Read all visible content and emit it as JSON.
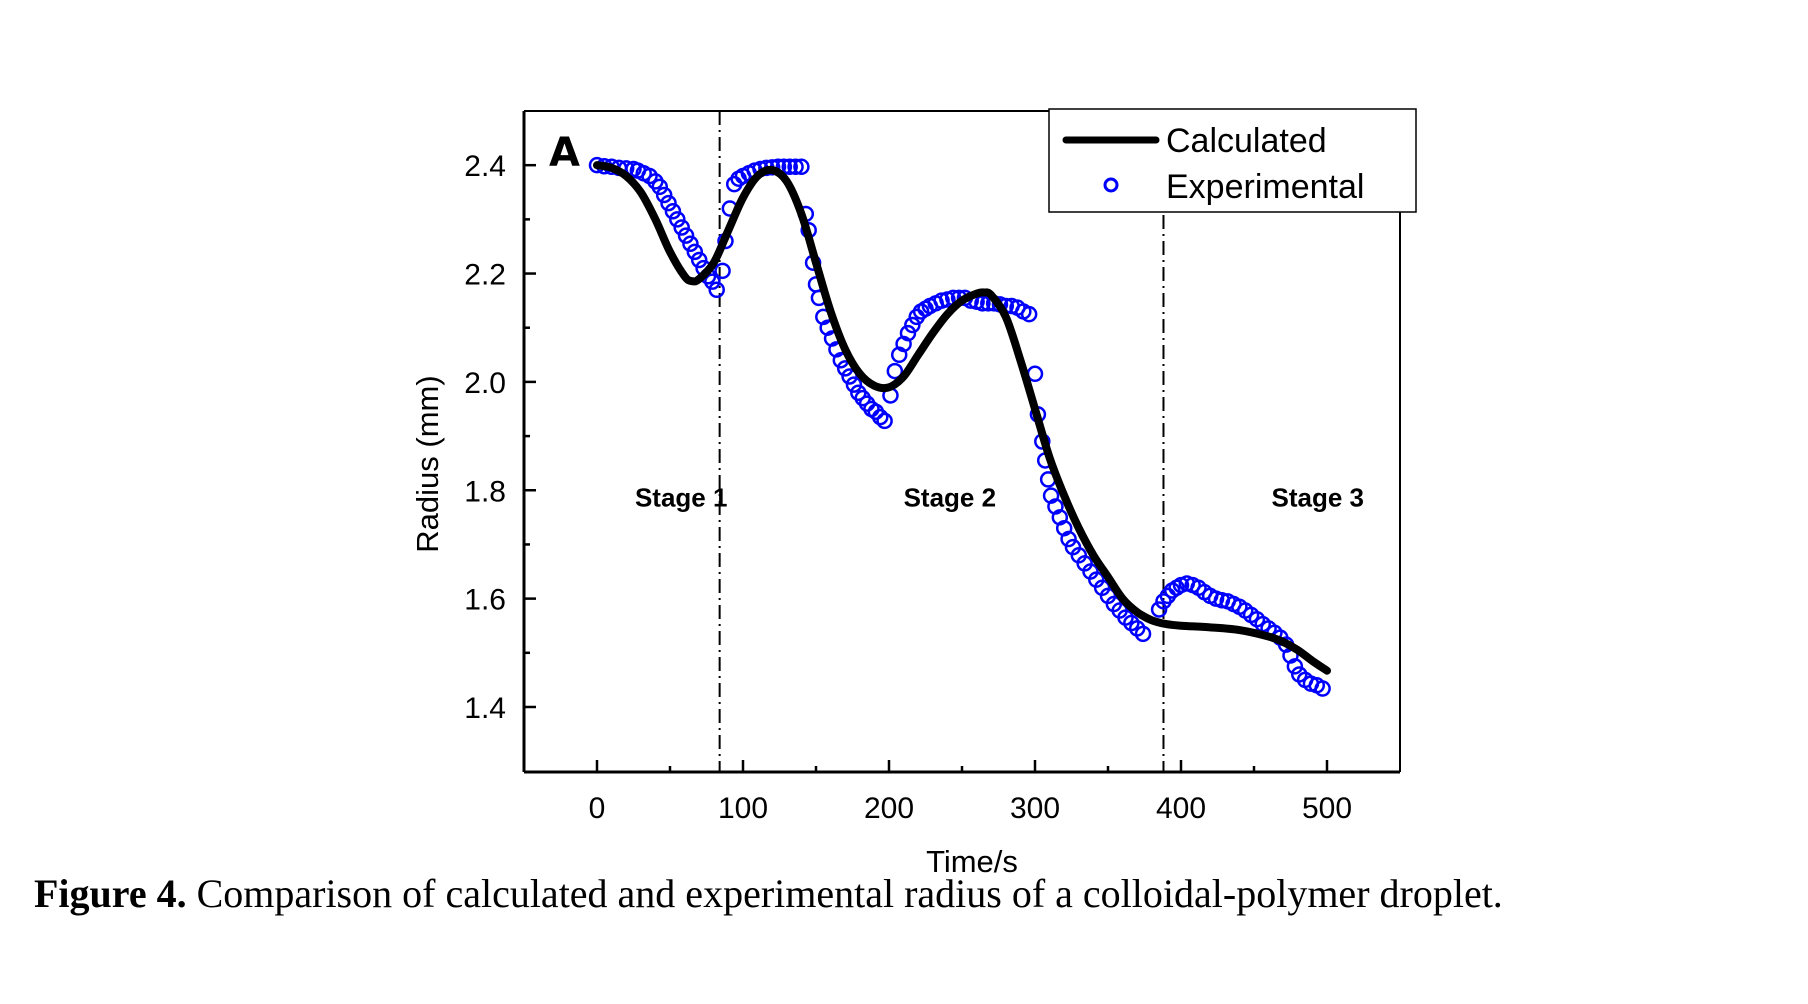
{
  "chart_data": {
    "type": "line",
    "panel_label": "A",
    "title": "",
    "xlabel": "Time/s",
    "ylabel": "Radius (mm)",
    "xlim": [
      -50,
      550
    ],
    "ylim": [
      1.28,
      2.5
    ],
    "x_ticks": [
      0,
      100,
      200,
      300,
      400,
      500
    ],
    "x_tick_labels": [
      "0",
      "100",
      "200",
      "300",
      "400",
      "500"
    ],
    "x_minor_ticks": [
      50,
      150,
      250,
      350,
      450
    ],
    "y_ticks": [
      1.4,
      1.6,
      1.8,
      2.0,
      2.2,
      2.4
    ],
    "y_tick_labels": [
      "1.4",
      "1.6",
      "1.8",
      "2.0",
      "2.2",
      "2.4"
    ],
    "y_minor_ticks": [
      1.5,
      1.7,
      1.9,
      2.1,
      2.3
    ],
    "grid": false,
    "legend": {
      "placement": "top-right",
      "entries": [
        {
          "label": "Calculated",
          "style": "line",
          "color": "#000000"
        },
        {
          "label": "Experimental",
          "style": "open-circle",
          "color": "#0000ff"
        }
      ]
    },
    "stage_boundaries": [
      84,
      388
    ],
    "stage_labels": [
      {
        "text": "Stage 1",
        "x": 26,
        "y": 1.77
      },
      {
        "text": "Stage 2",
        "x": 210,
        "y": 1.77
      },
      {
        "text": "Stage 3",
        "x": 462,
        "y": 1.77
      }
    ],
    "series": [
      {
        "name": "Calculated",
        "type": "line",
        "color": "#000000",
        "x": [
          0,
          10,
          20,
          30,
          40,
          50,
          60,
          65,
          70,
          80,
          90,
          100,
          110,
          120,
          130,
          140,
          150,
          160,
          170,
          180,
          190,
          200,
          210,
          220,
          230,
          240,
          250,
          260,
          265,
          270,
          280,
          290,
          300,
          310,
          320,
          330,
          340,
          350,
          360,
          370,
          380,
          390,
          400,
          420,
          440,
          460,
          470,
          480,
          490,
          500
        ],
        "y": [
          2.4,
          2.395,
          2.38,
          2.35,
          2.3,
          2.24,
          2.195,
          2.186,
          2.19,
          2.22,
          2.28,
          2.34,
          2.38,
          2.391,
          2.37,
          2.31,
          2.22,
          2.13,
          2.06,
          2.015,
          1.993,
          1.99,
          2.01,
          2.05,
          2.09,
          2.125,
          2.15,
          2.163,
          2.165,
          2.16,
          2.12,
          2.04,
          1.95,
          1.86,
          1.79,
          1.73,
          1.68,
          1.64,
          1.6,
          1.575,
          1.56,
          1.553,
          1.55,
          1.547,
          1.542,
          1.53,
          1.52,
          1.505,
          1.485,
          1.467
        ]
      },
      {
        "name": "Experimental",
        "type": "scatter",
        "marker": "open-circle",
        "color": "#0000ff",
        "x": [
          0,
          5,
          10,
          15,
          20,
          25,
          28,
          32,
          36,
          40,
          43,
          46,
          49,
          52,
          55,
          58,
          61,
          64,
          67,
          70,
          73,
          76,
          79,
          82,
          86,
          88,
          91,
          94,
          97,
          100,
          104,
          108,
          112,
          116,
          120,
          124,
          128,
          132,
          136,
          140,
          143,
          145,
          148,
          150,
          152,
          155,
          158,
          161,
          164,
          167,
          170,
          173,
          176,
          179,
          182,
          185,
          188,
          191,
          194,
          197,
          201,
          204,
          207,
          210,
          213,
          216,
          219,
          222,
          225,
          228,
          232,
          236,
          240,
          244,
          248,
          252,
          256,
          260,
          264,
          268,
          272,
          276,
          280,
          284,
          288,
          292,
          296,
          300,
          302,
          305,
          307,
          309,
          311,
          314,
          317,
          320,
          323,
          326,
          330,
          334,
          338,
          342,
          346,
          350,
          354,
          358,
          362,
          366,
          370,
          374,
          385,
          388,
          391,
          394,
          397,
          400,
          404,
          408,
          412,
          416,
          420,
          424,
          428,
          432,
          436,
          440,
          444,
          448,
          452,
          456,
          460,
          464,
          468,
          472,
          475,
          478,
          481,
          485,
          489,
          493,
          497
        ],
        "y": [
          2.4,
          2.398,
          2.397,
          2.395,
          2.394,
          2.393,
          2.39,
          2.385,
          2.38,
          2.37,
          2.36,
          2.345,
          2.33,
          2.315,
          2.3,
          2.285,
          2.27,
          2.255,
          2.24,
          2.225,
          2.21,
          2.195,
          2.185,
          2.17,
          2.205,
          2.26,
          2.32,
          2.365,
          2.375,
          2.38,
          2.385,
          2.39,
          2.393,
          2.395,
          2.396,
          2.397,
          2.397,
          2.397,
          2.397,
          2.397,
          2.31,
          2.28,
          2.22,
          2.18,
          2.155,
          2.12,
          2.1,
          2.08,
          2.06,
          2.04,
          2.025,
          2.01,
          1.995,
          1.98,
          1.97,
          1.96,
          1.95,
          1.945,
          1.935,
          1.928,
          1.975,
          2.02,
          2.05,
          2.07,
          2.09,
          2.105,
          2.12,
          2.13,
          2.135,
          2.14,
          2.145,
          2.15,
          2.152,
          2.155,
          2.155,
          2.155,
          2.15,
          2.148,
          2.145,
          2.145,
          2.145,
          2.143,
          2.14,
          2.14,
          2.137,
          2.13,
          2.125,
          2.015,
          1.94,
          1.89,
          1.855,
          1.82,
          1.79,
          1.77,
          1.75,
          1.73,
          1.71,
          1.695,
          1.68,
          1.665,
          1.65,
          1.635,
          1.62,
          1.605,
          1.59,
          1.578,
          1.565,
          1.555,
          1.545,
          1.535,
          1.58,
          1.595,
          1.605,
          1.615,
          1.62,
          1.625,
          1.628,
          1.625,
          1.62,
          1.612,
          1.605,
          1.6,
          1.597,
          1.595,
          1.59,
          1.585,
          1.578,
          1.57,
          1.562,
          1.553,
          1.545,
          1.537,
          1.528,
          1.515,
          1.495,
          1.475,
          1.46,
          1.45,
          1.443,
          1.44,
          1.434
        ]
      }
    ]
  },
  "caption": {
    "label": "Figure 4.",
    "text": " Comparison of calculated and experimental radius of a colloidal-polymer droplet."
  }
}
